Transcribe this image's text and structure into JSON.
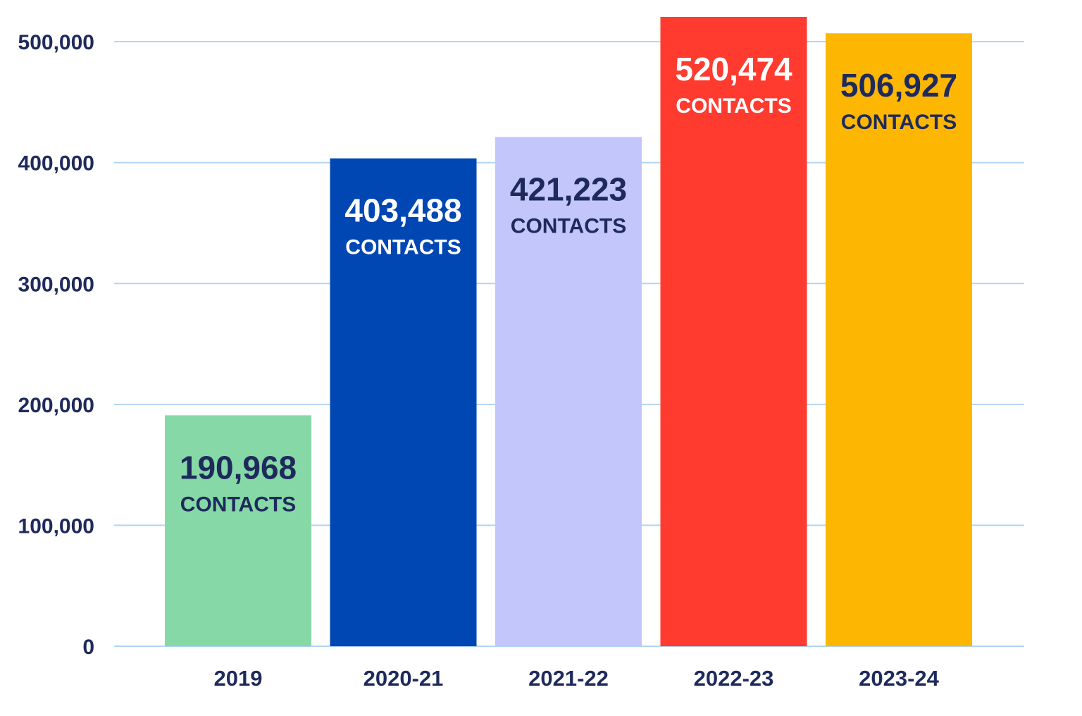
{
  "chart_data": {
    "type": "bar",
    "categories": [
      "2019",
      "2020-21",
      "2021-22",
      "2022-23",
      "2023-24"
    ],
    "values": [
      190968,
      403488,
      421223,
      520474,
      506927
    ],
    "value_labels": [
      "190,968",
      "403,488",
      "421,223",
      "520,474",
      "506,927"
    ],
    "value_unit_label": "CONTACTS",
    "ylim": [
      0,
      520474
    ],
    "y_ticks": [
      0,
      100000,
      200000,
      300000,
      400000,
      500000
    ],
    "y_tick_labels": [
      "0",
      "100,000",
      "200,000",
      "300,000",
      "400,000",
      "500,000"
    ],
    "grid": true,
    "legend": "none",
    "bar_colors": [
      "#86d9a6",
      "#0047b3",
      "#c2c6fa",
      "#ff3b30",
      "#fdb702"
    ],
    "label_colors": [
      "#1f2a5c",
      "#ffffff",
      "#1f2a5c",
      "#ffffff",
      "#1f2a5c"
    ],
    "grid_color": "#b3d4f2",
    "text_color": "#1f2a5c"
  }
}
